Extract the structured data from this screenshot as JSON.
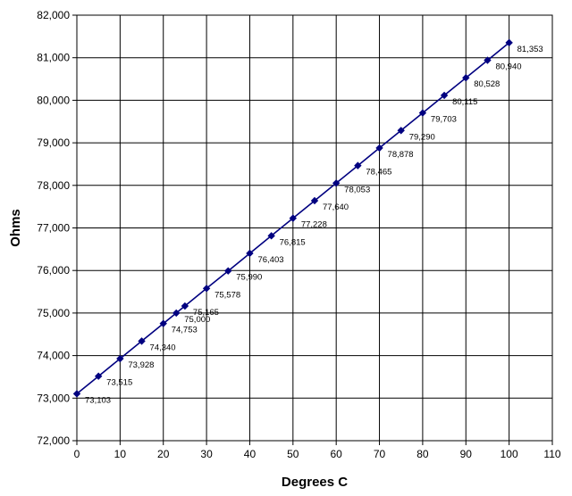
{
  "chart_data": {
    "type": "line",
    "title": "",
    "xlabel": "Degrees C",
    "ylabel": "Ohms",
    "xlim": [
      0,
      110
    ],
    "ylim": [
      72000,
      82000
    ],
    "x_ticks": [
      0,
      10,
      20,
      30,
      40,
      50,
      60,
      70,
      80,
      90,
      100,
      110
    ],
    "y_ticks": [
      72000,
      73000,
      74000,
      75000,
      76000,
      77000,
      78000,
      79000,
      80000,
      81000,
      82000
    ],
    "x_tick_labels": [
      "0",
      "10",
      "20",
      "30",
      "40",
      "50",
      "60",
      "70",
      "80",
      "90",
      "100",
      "110"
    ],
    "y_tick_labels": [
      "72,000",
      "73,000",
      "74,000",
      "75,000",
      "76,000",
      "77,000",
      "78,000",
      "79,000",
      "80,000",
      "81,000",
      "82,000"
    ],
    "grid": true,
    "legend": "none",
    "series": [
      {
        "color": "#000080",
        "marker": "diamond",
        "x": [
          0,
          5,
          10,
          15,
          20,
          23,
          25,
          30,
          35,
          40,
          45,
          50,
          55,
          60,
          65,
          70,
          75,
          80,
          85,
          90,
          95,
          100
        ],
        "y": [
          73103,
          73515,
          73928,
          74340,
          74753,
          75000,
          75165,
          75578,
          75990,
          76403,
          76815,
          77228,
          77640,
          78053,
          78465,
          78878,
          79290,
          79703,
          80115,
          80528,
          80940,
          81353
        ],
        "labels": [
          "73,103",
          "73,515",
          "73,928",
          "74,340",
          "74,753",
          "75,000",
          "75,165",
          "75,578",
          "75,990",
          "76,403",
          "76,815",
          "77,228",
          "77,640",
          "78,053",
          "78,465",
          "78,878",
          "79,290",
          "79,703",
          "80,115",
          "80,528",
          "80,940",
          "81,353"
        ]
      }
    ]
  }
}
